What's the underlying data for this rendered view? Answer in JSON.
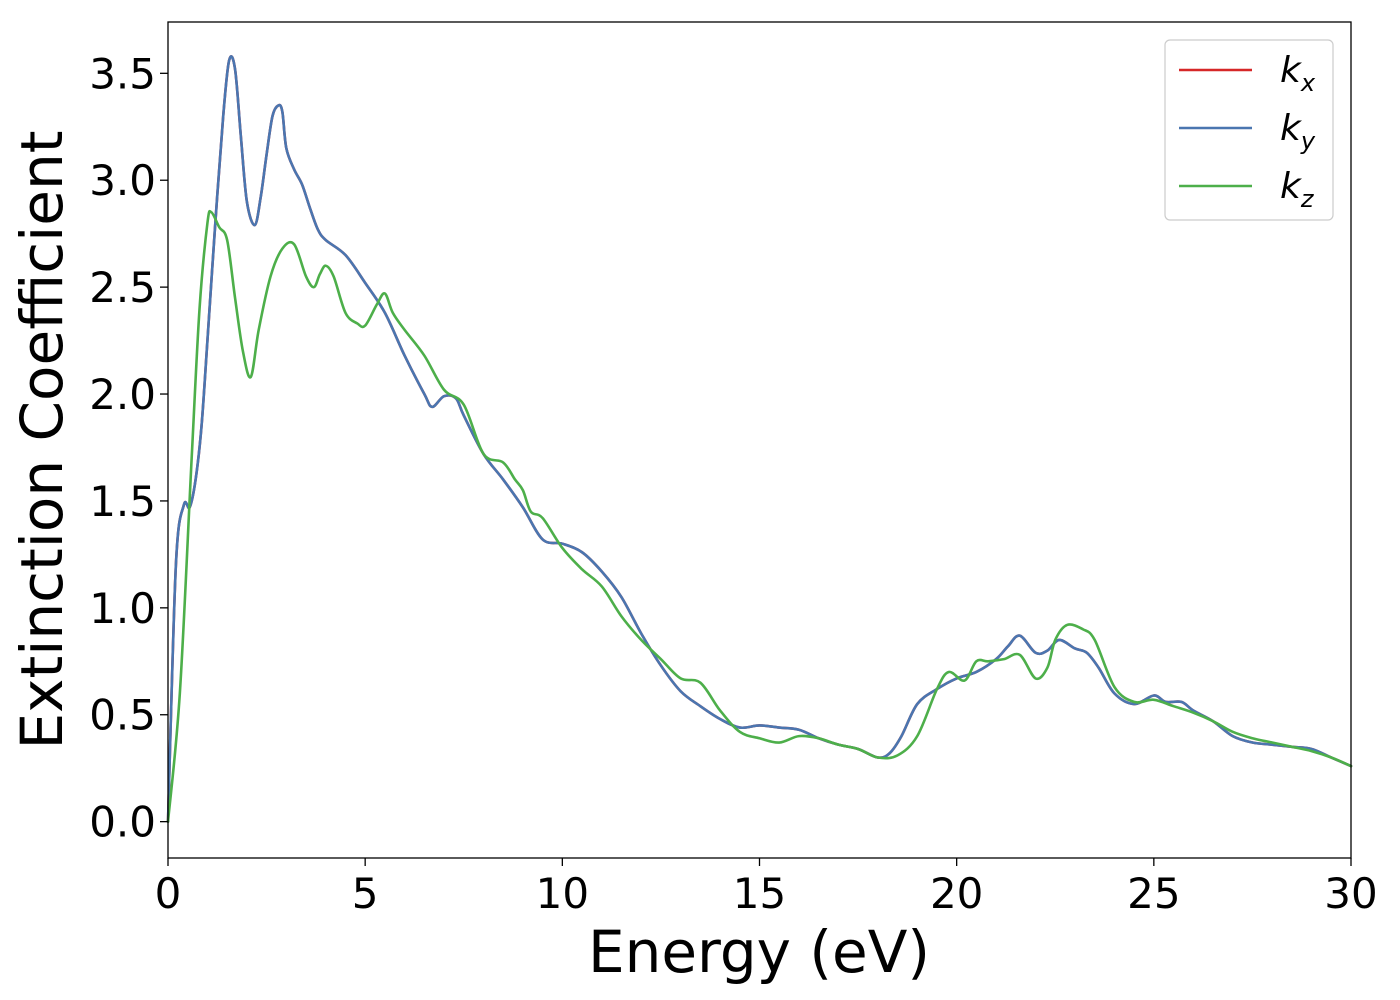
{
  "chart_data": {
    "type": "line",
    "title": "",
    "xlabel": "Energy (eV)",
    "ylabel": "Extinction Coefficient",
    "xlim": [
      0,
      30
    ],
    "ylim": [
      -0.17,
      3.74
    ],
    "xticks": [
      0,
      5,
      10,
      15,
      20,
      25,
      30
    ],
    "xtick_labels": [
      "0",
      "5",
      "10",
      "15",
      "20",
      "25",
      "30"
    ],
    "yticks": [
      0.0,
      0.5,
      1.0,
      1.5,
      2.0,
      2.5,
      3.0,
      3.5
    ],
    "ytick_labels": [
      "0.0",
      "0.5",
      "1.0",
      "1.5",
      "2.0",
      "2.5",
      "3.0",
      "3.5"
    ],
    "grid": false,
    "legend_position": "top-right",
    "series": [
      {
        "name": "k",
        "subscript": "x",
        "color": "#d62728",
        "x": [
          0,
          0.2,
          0.4,
          0.55,
          0.7,
          0.85,
          1.0,
          1.2,
          1.4,
          1.55,
          1.7,
          1.85,
          2.0,
          2.2,
          2.35,
          2.5,
          2.65,
          2.8,
          2.9,
          3.0,
          3.2,
          3.4,
          3.6,
          3.8,
          4.0,
          4.5,
          5.0,
          5.5,
          6.0,
          6.5,
          6.7,
          7.0,
          7.3,
          7.5,
          8.0,
          8.5,
          9.0,
          9.5,
          10.0,
          10.5,
          11.0,
          11.5,
          12.0,
          12.5,
          13.0,
          13.5,
          14.0,
          14.5,
          15.0,
          15.5,
          16.0,
          16.5,
          17.0,
          17.5,
          18.0,
          18.3,
          18.6,
          19.0,
          19.5,
          20.0,
          20.5,
          21.0,
          21.3,
          21.6,
          22.0,
          22.3,
          22.6,
          23.0,
          23.3,
          23.6,
          24.0,
          24.5,
          25.0,
          25.3,
          25.7,
          26.0,
          26.5,
          27.0,
          27.5,
          28.0,
          28.5,
          29.0,
          29.5,
          30.0
        ],
        "values": [
          0.0,
          1.2,
          1.48,
          1.47,
          1.6,
          1.85,
          2.25,
          2.8,
          3.3,
          3.56,
          3.52,
          3.2,
          2.9,
          2.79,
          2.92,
          3.12,
          3.3,
          3.35,
          3.32,
          3.15,
          3.05,
          2.98,
          2.87,
          2.77,
          2.72,
          2.65,
          2.52,
          2.38,
          2.18,
          2.0,
          1.94,
          1.99,
          1.98,
          1.9,
          1.72,
          1.6,
          1.47,
          1.32,
          1.3,
          1.26,
          1.17,
          1.05,
          0.88,
          0.73,
          0.61,
          0.54,
          0.48,
          0.44,
          0.45,
          0.44,
          0.43,
          0.39,
          0.36,
          0.34,
          0.3,
          0.32,
          0.4,
          0.55,
          0.62,
          0.67,
          0.7,
          0.76,
          0.82,
          0.87,
          0.79,
          0.8,
          0.85,
          0.81,
          0.79,
          0.72,
          0.6,
          0.55,
          0.59,
          0.56,
          0.56,
          0.52,
          0.47,
          0.4,
          0.37,
          0.36,
          0.35,
          0.34,
          0.3,
          0.26
        ]
      },
      {
        "name": "k",
        "subscript": "y",
        "color": "#4a76b0",
        "x": [
          0,
          0.2,
          0.4,
          0.55,
          0.7,
          0.85,
          1.0,
          1.2,
          1.4,
          1.55,
          1.7,
          1.85,
          2.0,
          2.2,
          2.35,
          2.5,
          2.65,
          2.8,
          2.9,
          3.0,
          3.2,
          3.4,
          3.6,
          3.8,
          4.0,
          4.5,
          5.0,
          5.5,
          6.0,
          6.5,
          6.7,
          7.0,
          7.3,
          7.5,
          8.0,
          8.5,
          9.0,
          9.5,
          10.0,
          10.5,
          11.0,
          11.5,
          12.0,
          12.5,
          13.0,
          13.5,
          14.0,
          14.5,
          15.0,
          15.5,
          16.0,
          16.5,
          17.0,
          17.5,
          18.0,
          18.3,
          18.6,
          19.0,
          19.5,
          20.0,
          20.5,
          21.0,
          21.3,
          21.6,
          22.0,
          22.3,
          22.6,
          23.0,
          23.3,
          23.6,
          24.0,
          24.5,
          25.0,
          25.3,
          25.7,
          26.0,
          26.5,
          27.0,
          27.5,
          28.0,
          28.5,
          29.0,
          29.5,
          30.0
        ],
        "values": [
          0.0,
          1.2,
          1.48,
          1.47,
          1.6,
          1.85,
          2.25,
          2.8,
          3.3,
          3.56,
          3.52,
          3.2,
          2.9,
          2.79,
          2.92,
          3.12,
          3.3,
          3.35,
          3.32,
          3.15,
          3.05,
          2.98,
          2.87,
          2.77,
          2.72,
          2.65,
          2.52,
          2.38,
          2.18,
          2.0,
          1.94,
          1.99,
          1.98,
          1.9,
          1.72,
          1.6,
          1.47,
          1.32,
          1.3,
          1.26,
          1.17,
          1.05,
          0.88,
          0.73,
          0.61,
          0.54,
          0.48,
          0.44,
          0.45,
          0.44,
          0.43,
          0.39,
          0.36,
          0.34,
          0.3,
          0.32,
          0.4,
          0.55,
          0.62,
          0.67,
          0.7,
          0.76,
          0.82,
          0.87,
          0.79,
          0.8,
          0.85,
          0.81,
          0.79,
          0.72,
          0.6,
          0.55,
          0.59,
          0.56,
          0.56,
          0.52,
          0.47,
          0.4,
          0.37,
          0.36,
          0.35,
          0.34,
          0.3,
          0.26
        ]
      },
      {
        "name": "k",
        "subscript": "z",
        "color": "#4daf4a",
        "x": [
          0,
          0.3,
          0.6,
          0.8,
          1.0,
          1.1,
          1.3,
          1.5,
          1.7,
          1.9,
          2.1,
          2.3,
          2.6,
          2.9,
          3.2,
          3.5,
          3.7,
          3.85,
          4.0,
          4.2,
          4.5,
          4.8,
          5.0,
          5.3,
          5.5,
          5.7,
          6.0,
          6.5,
          7.0,
          7.5,
          8.0,
          8.5,
          8.8,
          9.0,
          9.2,
          9.5,
          10.0,
          10.5,
          11.0,
          11.5,
          12.0,
          12.5,
          13.0,
          13.5,
          14.0,
          14.5,
          15.0,
          15.5,
          16.0,
          16.5,
          17.0,
          17.5,
          18.0,
          18.5,
          19.0,
          19.5,
          19.8,
          20.2,
          20.5,
          20.8,
          21.2,
          21.6,
          22.0,
          22.3,
          22.5,
          22.8,
          23.2,
          23.5,
          24.0,
          24.5,
          25.0,
          25.5,
          26.0,
          26.5,
          27.0,
          27.5,
          28.0,
          28.5,
          29.0,
          29.5,
          30.0
        ],
        "values": [
          0.0,
          0.6,
          1.7,
          2.4,
          2.8,
          2.85,
          2.78,
          2.72,
          2.45,
          2.2,
          2.08,
          2.3,
          2.55,
          2.68,
          2.7,
          2.55,
          2.5,
          2.56,
          2.6,
          2.55,
          2.38,
          2.33,
          2.32,
          2.42,
          2.47,
          2.38,
          2.3,
          2.18,
          2.02,
          1.95,
          1.72,
          1.68,
          1.6,
          1.55,
          1.45,
          1.42,
          1.28,
          1.18,
          1.1,
          0.96,
          0.85,
          0.76,
          0.67,
          0.65,
          0.52,
          0.42,
          0.39,
          0.37,
          0.4,
          0.39,
          0.36,
          0.34,
          0.3,
          0.31,
          0.4,
          0.62,
          0.7,
          0.66,
          0.75,
          0.75,
          0.76,
          0.78,
          0.67,
          0.72,
          0.85,
          0.92,
          0.9,
          0.85,
          0.63,
          0.56,
          0.57,
          0.54,
          0.51,
          0.47,
          0.42,
          0.39,
          0.37,
          0.35,
          0.33,
          0.3,
          0.26
        ]
      }
    ]
  }
}
